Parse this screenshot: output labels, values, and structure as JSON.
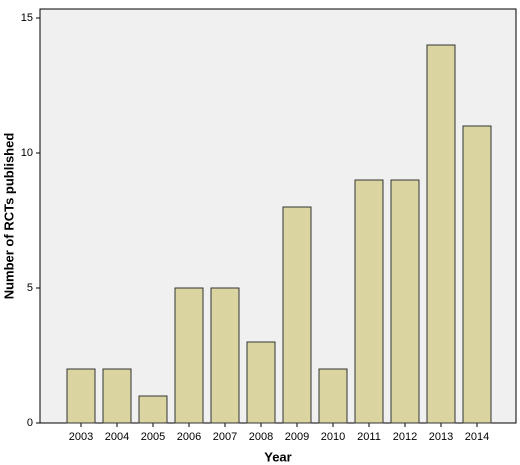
{
  "chart_data": {
    "type": "bar",
    "x_label": "Year",
    "y_label": "Number of RCTs published",
    "categories": [
      "2003",
      "2004",
      "2005",
      "2006",
      "2007",
      "2008",
      "2009",
      "2010",
      "2011",
      "2012",
      "2013",
      "2014"
    ],
    "values": [
      2,
      2,
      1,
      5,
      5,
      3,
      8,
      2,
      9,
      9,
      14,
      11
    ],
    "color": "#d9d4a0",
    "ylim": [
      0,
      15
    ],
    "yticks": [
      0,
      5,
      10,
      15
    ],
    "grid": false
  }
}
